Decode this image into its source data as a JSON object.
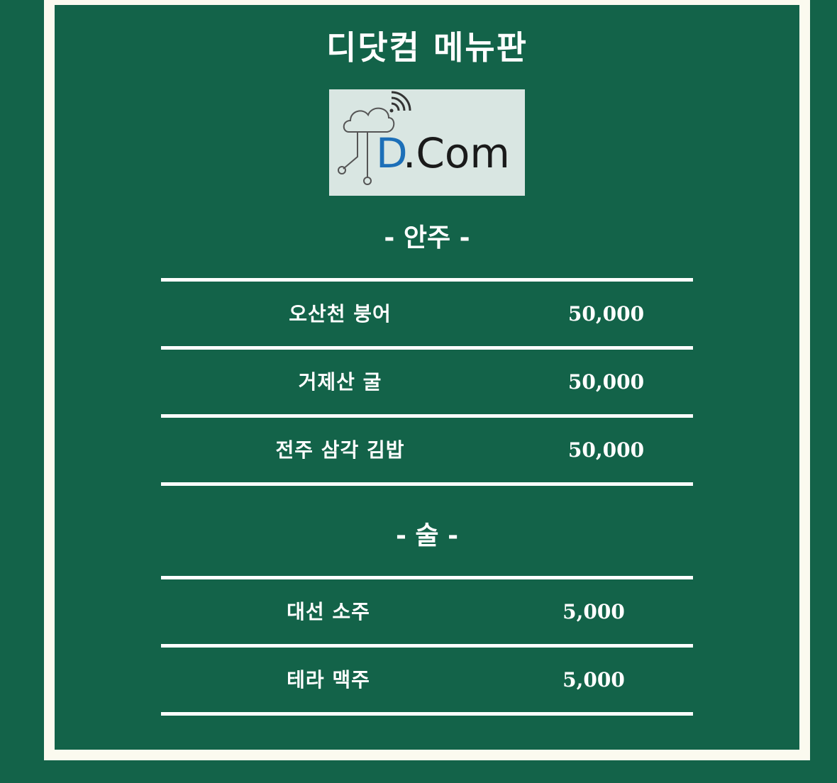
{
  "menu_board": {
    "title": "디닷컴 메뉴판",
    "logo": {
      "text_d": "D",
      "text_com": ".Com",
      "colors": {
        "d": "#1c6fb8",
        "com": "#1a1a1a",
        "background": "#d9e6e2"
      },
      "icon": "cloud-wifi-circuit-icon"
    },
    "sections": [
      {
        "title": "- 안주 -",
        "items": [
          {
            "name": "오산천 붕어",
            "price": "50,000"
          },
          {
            "name": "거제산 굴",
            "price": "50,000"
          },
          {
            "name": "전주 삼각 김밥",
            "price": "50,000"
          }
        ]
      },
      {
        "title": "- 술 -",
        "items": [
          {
            "name": "대선 소주",
            "price": "5,000"
          },
          {
            "name": "테라 맥주",
            "price": "5,000"
          }
        ]
      }
    ]
  },
  "colors": {
    "background": "#136349",
    "frame": "#fbfaef",
    "text": "#ffffff"
  }
}
